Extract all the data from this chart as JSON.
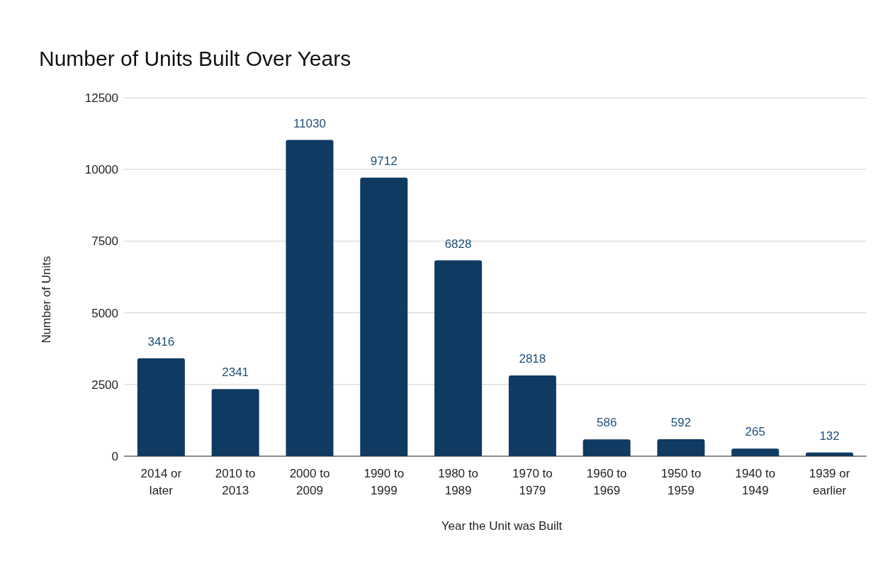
{
  "chart_data": {
    "type": "bar",
    "title": "Number of Units Built Over Years",
    "xlabel": "Year the Unit was Built",
    "ylabel": "Number of Units",
    "categories": [
      "2014 or later",
      "2010 to 2013",
      "2000 to 2009",
      "1990 to 1999",
      "1980 to 1989",
      "1970 to 1979",
      "1960 to 1969",
      "1950 to 1959",
      "1940 to 1949",
      "1939 or earlier"
    ],
    "values": [
      3416,
      2341,
      11030,
      9712,
      6828,
      2818,
      586,
      592,
      265,
      132
    ],
    "color": "#0f3a62",
    "ylim": [
      0,
      12500
    ],
    "yticks": [
      0,
      2500,
      5000,
      7500,
      10000,
      12500
    ],
    "grid": "y",
    "legend": false,
    "data_labels": true
  }
}
